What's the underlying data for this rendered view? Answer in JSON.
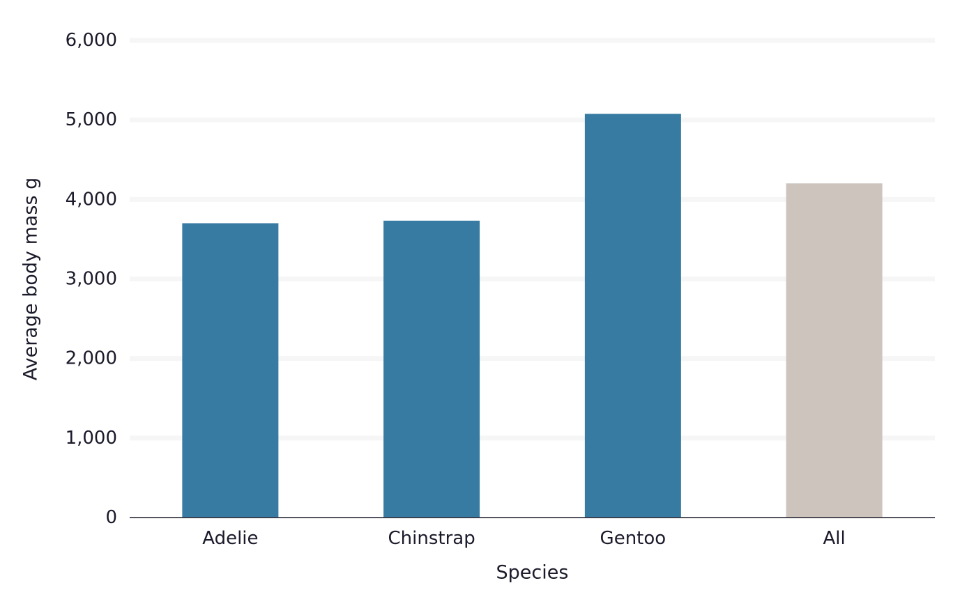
{
  "chart_data": {
    "type": "bar",
    "categories": [
      "Adelie",
      "Chinstrap",
      "Gentoo",
      "All"
    ],
    "values": [
      3701,
      3733,
      5076,
      4202
    ],
    "bar_colors": [
      "#377ba3",
      "#377ba3",
      "#377ba3",
      "#cdc4be"
    ],
    "xlabel": "Species",
    "ylabel": "Average body mass g",
    "ylim": [
      0,
      6000
    ],
    "yticks": [
      0,
      1000,
      2000,
      3000,
      4000,
      5000,
      6000
    ],
    "ytick_labels": [
      "0",
      "1,000",
      "2,000",
      "3,000",
      "4,000",
      "5,000",
      "6,000"
    ],
    "grid": true,
    "colors": {
      "grid": "#f6f6f6",
      "axis": "#1a1a2a",
      "text": "#1a1a2a"
    }
  }
}
